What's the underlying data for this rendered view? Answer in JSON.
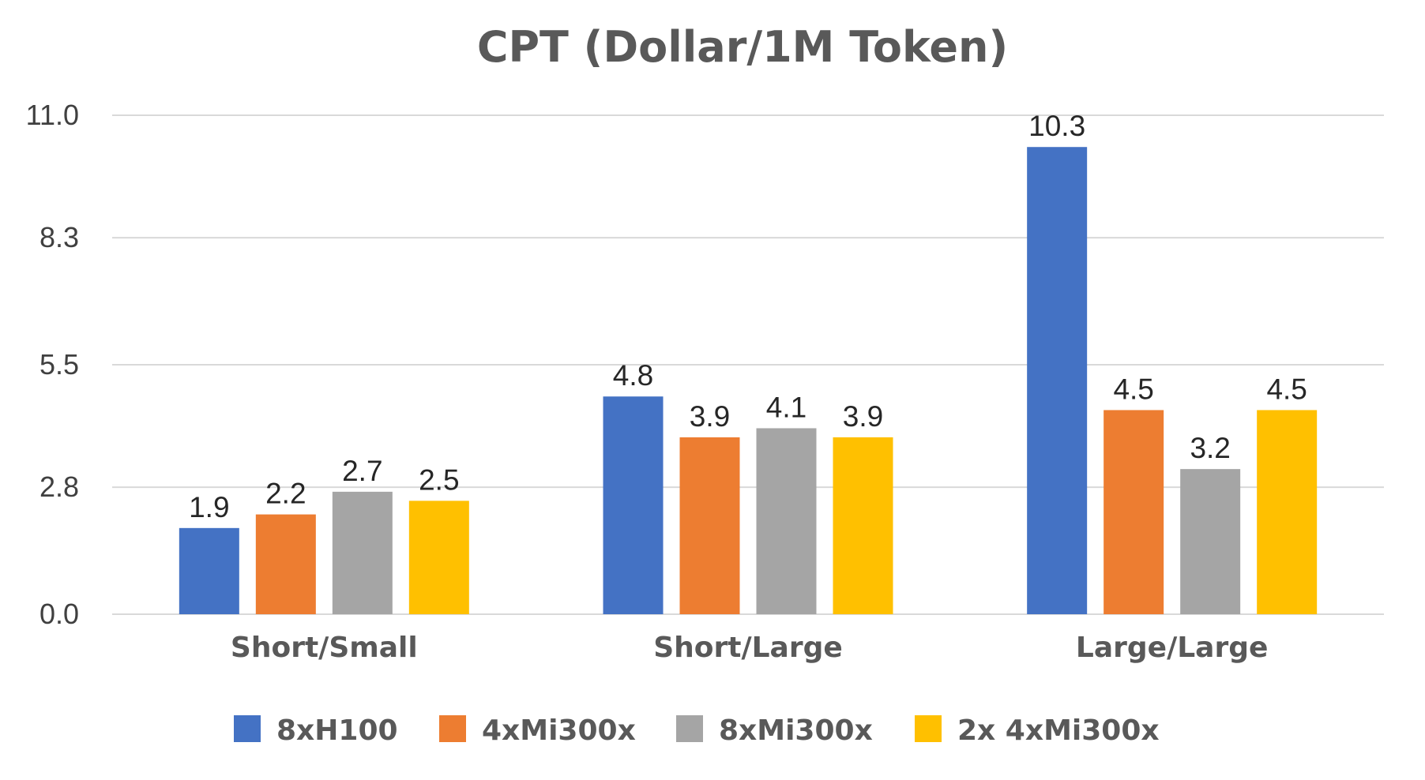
{
  "chart_data": {
    "type": "bar",
    "title": "CPT (Dollar/1M Token)",
    "xlabel": "",
    "ylabel": "",
    "categories": [
      "Short/Small",
      "Short/Large",
      "Large/Large"
    ],
    "yticks": [
      "0.0",
      "2.8",
      "5.5",
      "8.3",
      "11.0"
    ],
    "ylim": [
      0,
      11.0
    ],
    "grid": true,
    "legend_position": "bottom",
    "series": [
      {
        "name": "8xH100",
        "color": "#4472C4",
        "values": [
          1.9,
          4.8,
          10.3
        ],
        "labels": [
          "1.9",
          "4.8",
          "10.3"
        ]
      },
      {
        "name": "4xMi300x",
        "color": "#ED7D31",
        "values": [
          2.2,
          3.9,
          4.5
        ],
        "labels": [
          "2.2",
          "3.9",
          "4.5"
        ]
      },
      {
        "name": "8xMi300x",
        "color": "#A5A5A5",
        "values": [
          2.7,
          4.1,
          3.2
        ],
        "labels": [
          "2.7",
          "4.1",
          "3.2"
        ]
      },
      {
        "name": "2x 4xMi300x",
        "color": "#FFC000",
        "values": [
          2.5,
          3.9,
          4.5
        ],
        "labels": [
          "2.5",
          "3.9",
          "4.5"
        ]
      }
    ]
  }
}
